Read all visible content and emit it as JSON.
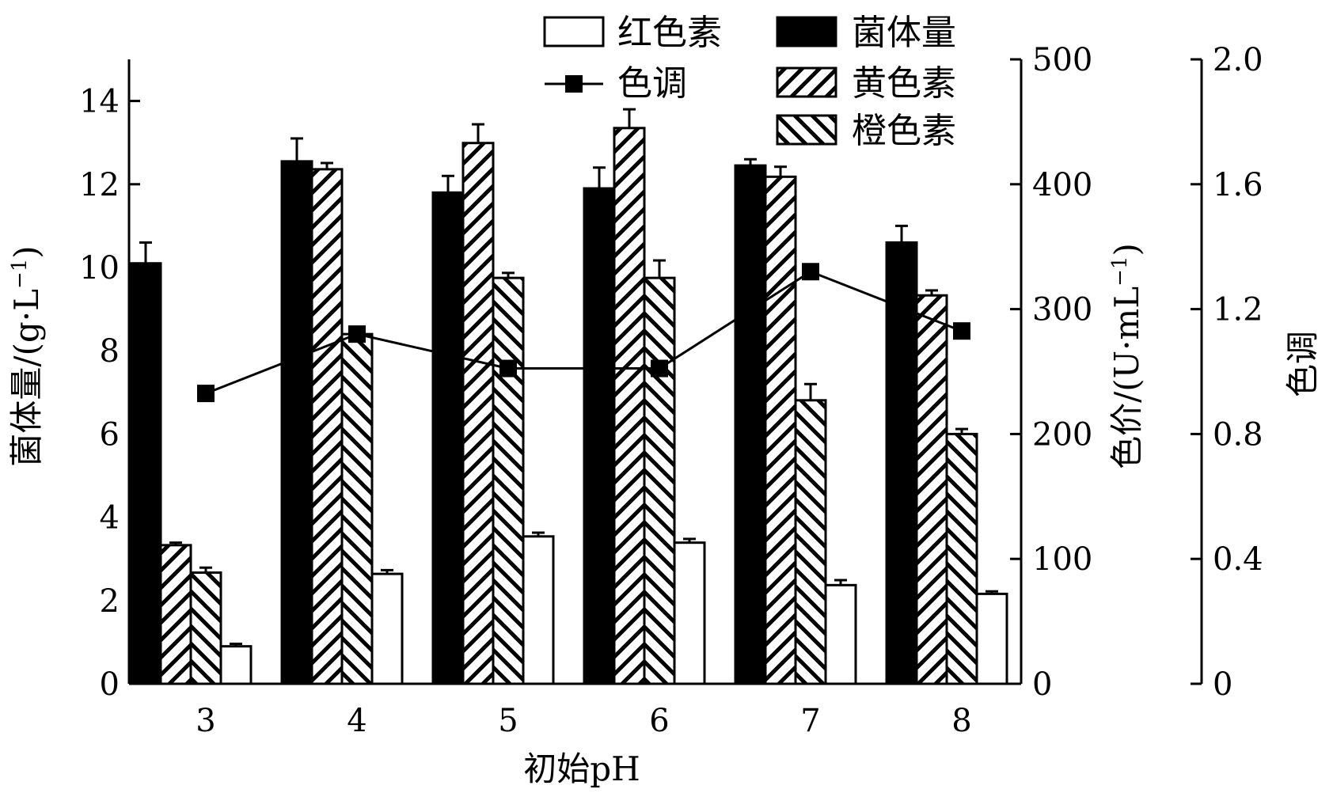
{
  "chart_data": {
    "type": "bar",
    "xlabel": "初始pH",
    "categories": [
      "3",
      "4",
      "5",
      "6",
      "7",
      "8"
    ],
    "axes": {
      "left": {
        "label": "菌体量/(g·L",
        "label_sup": "−1",
        "label_end": ")",
        "range": [
          0,
          15
        ],
        "ticks": [
          "0",
          "2",
          "4",
          "6",
          "8",
          "10",
          "12",
          "14"
        ]
      },
      "right1": {
        "label": "色价/(U·mL",
        "label_sup": "−1",
        "label_end": ")",
        "range": [
          0,
          500
        ],
        "ticks": [
          "0",
          "100",
          "200",
          "300",
          "400",
          "500"
        ]
      },
      "right2": {
        "label": "色调",
        "range": [
          0,
          2.0
        ],
        "ticks": [
          "0",
          "0.4",
          "0.8",
          "1.2",
          "1.6",
          "2.0"
        ]
      }
    },
    "series": [
      {
        "name": "菌体量",
        "kind": "bar",
        "axis": "left",
        "pattern": "solid",
        "color": "#000000",
        "values": [
          10.1,
          12.55,
          11.8,
          11.9,
          12.45,
          10.6
        ],
        "errors": [
          0.5,
          0.55,
          0.4,
          0.5,
          0.15,
          0.4
        ]
      },
      {
        "name": "黄色素",
        "kind": "bar",
        "axis": "right1",
        "pattern": "hatch-fwd",
        "values": [
          111,
          412,
          433,
          445,
          406,
          311
        ],
        "errors": [
          2,
          5,
          15,
          15,
          8,
          4
        ]
      },
      {
        "name": "橙色素",
        "kind": "bar",
        "axis": "right1",
        "pattern": "hatch-back",
        "values": [
          89,
          280,
          325,
          325,
          227,
          200
        ],
        "errors": [
          4,
          2,
          4,
          14,
          13,
          4
        ]
      },
      {
        "name": "红色素",
        "kind": "bar",
        "axis": "right1",
        "pattern": "white",
        "values": [
          30,
          88,
          118,
          113,
          79,
          72
        ],
        "errors": [
          2,
          3,
          3,
          3,
          4,
          2
        ]
      },
      {
        "name": "色调",
        "kind": "line",
        "axis": "right2",
        "marker": "square",
        "values": [
          0.93,
          1.12,
          1.01,
          1.01,
          1.32,
          1.13
        ]
      }
    ],
    "legend": {
      "placement": "top-center",
      "entries": [
        {
          "name": "红色素",
          "swatch": "white"
        },
        {
          "name": "菌体量",
          "swatch": "solid"
        },
        {
          "name": "色调",
          "swatch": "line"
        },
        {
          "name": "黄色素",
          "swatch": "hatch-fwd"
        },
        {
          "name": "橙色素",
          "swatch": "hatch-back"
        }
      ]
    }
  }
}
